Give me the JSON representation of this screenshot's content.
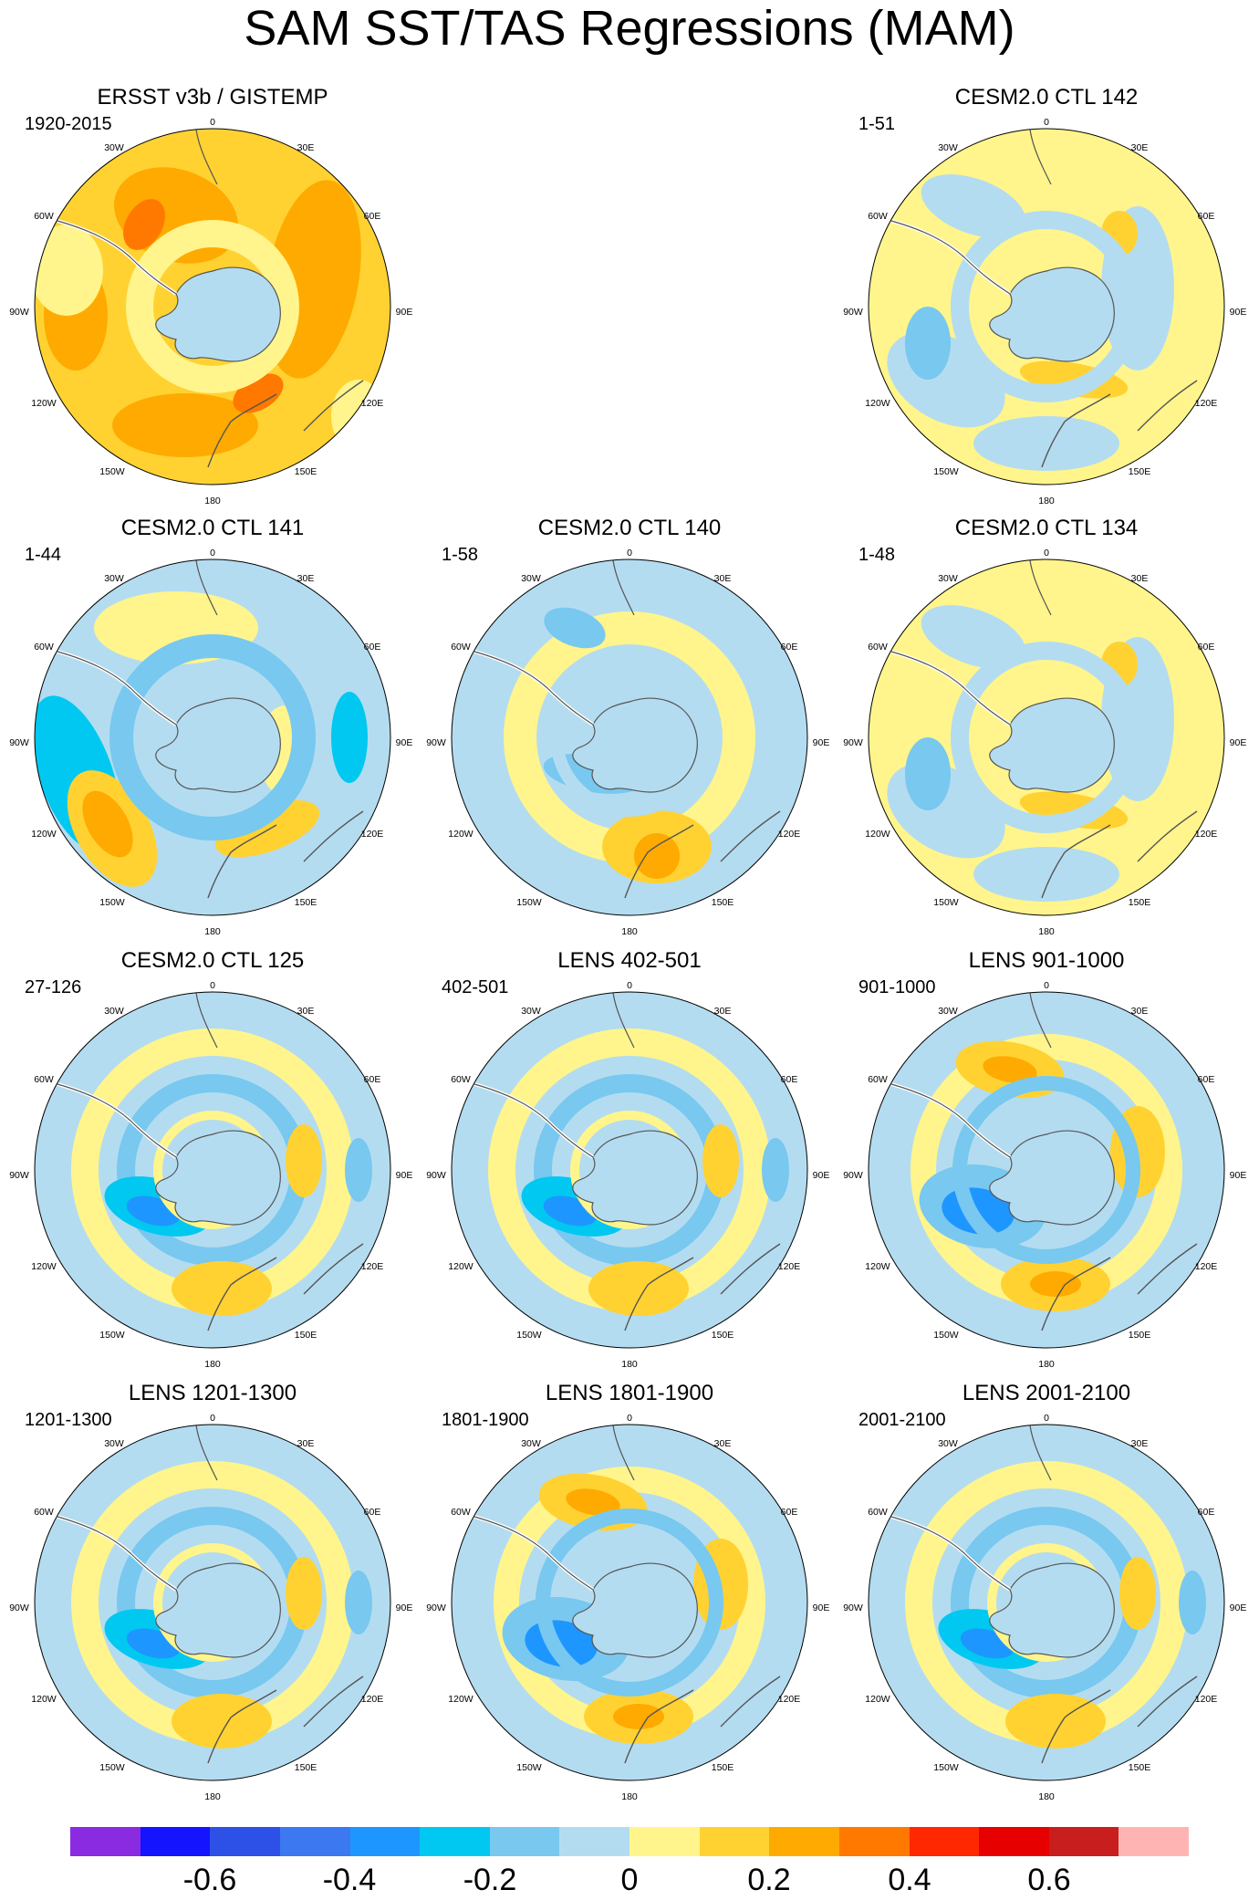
{
  "figure_title": "SAM SST/TAS Regressions (MAM)",
  "lon_labels": [
    "0",
    "30E",
    "60E",
    "90E",
    "120E",
    "150E",
    "180",
    "150W",
    "120W",
    "90W",
    "60W",
    "30W"
  ],
  "panels": [
    {
      "title": "ERSST v3b / GISTEMP",
      "period": "1920-2015",
      "pattern": "obs_warm"
    },
    {
      "title": "CESM2.0 CTL 142",
      "period": "1-51",
      "pattern": "weak_mixed"
    },
    {
      "title": "CESM2.0 CTL 141",
      "period": "1-44",
      "pattern": "strong_wave"
    },
    {
      "title": "CESM2.0 CTL 140",
      "period": "1-58",
      "pattern": "mostly_cool"
    },
    {
      "title": "CESM2.0 CTL 134",
      "period": "1-48",
      "pattern": "weak_mixed"
    },
    {
      "title": "CESM2.0 CTL 125",
      "period": "27-126",
      "pattern": "ring_cool"
    },
    {
      "title": "LENS 402-501",
      "period": "402-501",
      "pattern": "ring_cool"
    },
    {
      "title": "LENS 901-1000",
      "period": "901-1000",
      "pattern": "wave_warm"
    },
    {
      "title": "LENS 1201-1300",
      "period": "1201-1300",
      "pattern": "ring_cool"
    },
    {
      "title": "LENS 1801-1900",
      "period": "1801-1900",
      "pattern": "wave_warm"
    },
    {
      "title": "LENS 2001-2100",
      "period": "2001-2100",
      "pattern": "ring_cool"
    }
  ],
  "colorbar": {
    "colors": [
      "#8a2be2",
      "#1414ff",
      "#2d50e6",
      "#3c78f0",
      "#1e96ff",
      "#00c8f0",
      "#78c8f0",
      "#b4dcf0",
      "#fff58c",
      "#ffd232",
      "#ffaa00",
      "#ff7800",
      "#ff2800",
      "#e60000",
      "#c81e1e",
      "#ffb4b4"
    ],
    "tick_labels": [
      "-0.6",
      "-0.4",
      "-0.2",
      "0",
      "0.2",
      "0.4",
      "0.6"
    ]
  }
}
